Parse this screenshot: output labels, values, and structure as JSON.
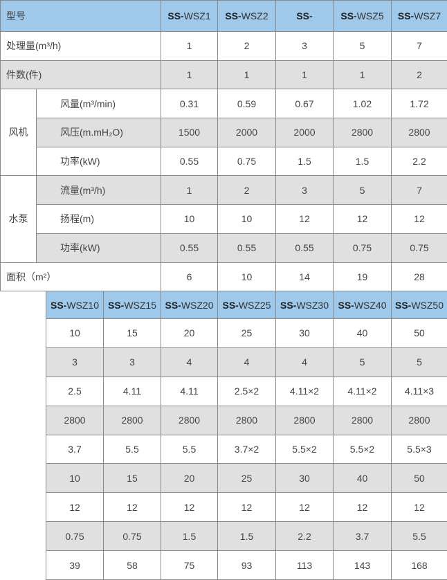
{
  "table1": {
    "model_label": "型号",
    "models": [
      "SS-WSZ1",
      "SS-WSZ2",
      "SS-",
      "SS-WSZ5",
      "SS-WSZ7"
    ],
    "rows": [
      {
        "group": "",
        "label": "处理量(m³/h)",
        "values": [
          "1",
          "2",
          "3",
          "5",
          "7"
        ],
        "shade": "white"
      },
      {
        "group": "",
        "label": "件数(件)",
        "values": [
          "1",
          "1",
          "1",
          "1",
          "2"
        ],
        "shade": "gray"
      },
      {
        "group": "风机",
        "label": "风量(m³/min)",
        "values": [
          "0.31",
          "0.59",
          "0.67",
          "1.02",
          "1.72"
        ],
        "shade": "white"
      },
      {
        "group": "风机",
        "label": "风压(m.mH₂O)",
        "values": [
          "1500",
          "2000",
          "2000",
          "2800",
          "2800"
        ],
        "shade": "gray"
      },
      {
        "group": "风机",
        "label": "功率(kW)",
        "values": [
          "0.55",
          "0.75",
          "1.5",
          "1.5",
          "2.2"
        ],
        "shade": "white"
      },
      {
        "group": "水泵",
        "label": "流量(m³/h)",
        "values": [
          "1",
          "2",
          "3",
          "5",
          "7"
        ],
        "shade": "gray"
      },
      {
        "group": "水泵",
        "label": "扬程(m)",
        "values": [
          "10",
          "10",
          "12",
          "12",
          "12"
        ],
        "shade": "white"
      },
      {
        "group": "水泵",
        "label": "功率(kW)",
        "values": [
          "0.55",
          "0.55",
          "0.55",
          "0.75",
          "0.75"
        ],
        "shade": "gray"
      },
      {
        "group": "",
        "label": "面积（m²）",
        "values": [
          "6",
          "10",
          "14",
          "19",
          "28"
        ],
        "shade": "white"
      }
    ]
  },
  "table2": {
    "models": [
      "SS-WSZ10",
      "SS-WSZ15",
      "SS-WSZ20",
      "SS-WSZ25",
      "SS-WSZ30",
      "SS-WSZ40",
      "SS-WSZ50"
    ],
    "rows": [
      [
        "10",
        "15",
        "20",
        "25",
        "30",
        "40",
        "50"
      ],
      [
        "3",
        "3",
        "4",
        "4",
        "4",
        "5",
        "5"
      ],
      [
        "2.5",
        "4.11",
        "4.11",
        "2.5×2",
        "4.11×2",
        "4.11×2",
        "4.11×3"
      ],
      [
        "2800",
        "2800",
        "2800",
        "2800",
        "2800",
        "2800",
        "2800"
      ],
      [
        "3.7",
        "5.5",
        "5.5",
        "3.7×2",
        "5.5×2",
        "5.5×2",
        "5.5×3"
      ],
      [
        "10",
        "15",
        "20",
        "25",
        "30",
        "40",
        "50"
      ],
      [
        "12",
        "12",
        "12",
        "12",
        "12",
        "12",
        "12"
      ],
      [
        "0.75",
        "0.75",
        "1.5",
        "1.5",
        "2.2",
        "3.7",
        "5.5"
      ],
      [
        "39",
        "58",
        "75",
        "93",
        "113",
        "143",
        "168"
      ]
    ]
  },
  "colors": {
    "header": "#9ec9ea",
    "stripe": "#e0e0e0",
    "border": "#8a8a8a"
  }
}
